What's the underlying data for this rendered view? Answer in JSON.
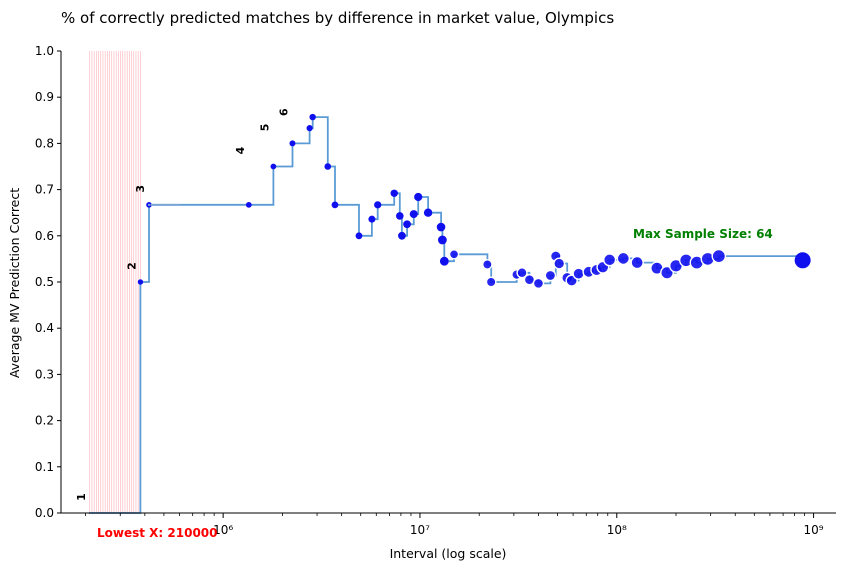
{
  "chart_data": {
    "type": "line",
    "title": "% of correctly predicted matches by difference in market value, Olympics",
    "xlabel": "Interval (log scale)",
    "ylabel": "Average MV Prediction Correct",
    "xscale": "log",
    "xlim": [
      150000,
      1300000000
    ],
    "ylim": [
      0,
      1
    ],
    "yticks": [
      0.0,
      0.1,
      0.2,
      0.3,
      0.4,
      0.5,
      0.6,
      0.7,
      0.8,
      0.9,
      1.0
    ],
    "ytick_labels": [
      "0.0",
      "0.1",
      "0.2",
      "0.3",
      "0.4",
      "0.5",
      "0.6",
      "0.7",
      "0.8",
      "0.9",
      "1.0"
    ],
    "xticks": [
      1000000,
      10000000,
      100000000,
      1000000000
    ],
    "xtick_labels": [
      "10⁶",
      "10⁷",
      "10⁸",
      "10⁹"
    ],
    "grid": false,
    "series": [
      {
        "style": "step-post",
        "color": "#5b9bd5",
        "marker_color": "#1010ee",
        "x": [
          210000,
          380000,
          420000,
          1350000,
          1800000,
          2250000,
          2750000,
          2850000,
          3400000,
          3700000,
          4900000,
          5700000,
          6100000,
          7400000,
          7900000,
          8100000,
          8600000,
          9300000,
          9800000,
          11000000,
          12800000,
          13000000,
          13300000,
          14900000,
          22000000,
          23000000,
          31000000,
          33000000,
          36000000,
          40000000,
          46000000,
          49000000,
          51000000,
          56000000,
          59000000,
          64000000,
          72000000,
          79000000,
          85000000,
          92000000,
          108000000,
          127000000,
          160000000,
          180000000,
          200000000,
          225000000,
          255000000,
          290000000,
          330000000,
          880000000
        ],
        "y": [
          0.0,
          0.5,
          0.667,
          0.667,
          0.75,
          0.8,
          0.833,
          0.857,
          0.75,
          0.667,
          0.6,
          0.636,
          0.667,
          0.692,
          0.643,
          0.6,
          0.625,
          0.647,
          0.684,
          0.65,
          0.619,
          0.591,
          0.545,
          0.56,
          0.538,
          0.5,
          0.516,
          0.52,
          0.505,
          0.497,
          0.514,
          0.556,
          0.54,
          0.509,
          0.503,
          0.518,
          0.522,
          0.526,
          0.532,
          0.548,
          0.551,
          0.542,
          0.53,
          0.52,
          0.535,
          0.547,
          0.542,
          0.55,
          0.556,
          0.547
        ]
      }
    ],
    "red_band": {
      "x_start": 210000,
      "x_end": 380000,
      "color": "#ffb0b8"
    },
    "annotations": [
      {
        "text": "1",
        "x": 210000,
        "y": 0.0
      },
      {
        "text": "2",
        "x": 380000,
        "y": 0.5
      },
      {
        "text": "3",
        "x": 420000,
        "y": 0.667
      },
      {
        "text": "4",
        "x": 1350000,
        "y": 0.75
      },
      {
        "text": "5",
        "x": 1800000,
        "y": 0.8
      },
      {
        "text": "6",
        "x": 2250000,
        "y": 0.833
      }
    ],
    "max_sample_label": {
      "text": "Max Sample Size: 64",
      "color": "#008000"
    },
    "lowest_x_label": {
      "text": "Lowest X: 210000",
      "color": "#ff0000"
    }
  }
}
